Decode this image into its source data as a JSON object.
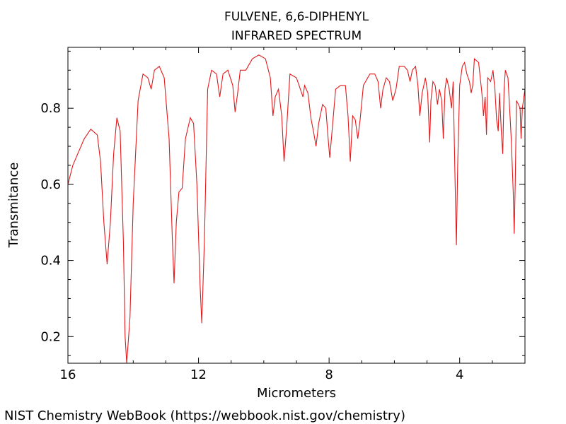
{
  "chart_data": {
    "type": "line",
    "title": "FULVENE, 6,6-DIPHENYL",
    "subtitle": "INFRARED SPECTRUM",
    "xlabel": "Micrometers",
    "ylabel": "Transmitance",
    "xlim": [
      16,
      2
    ],
    "ylim": [
      0.13,
      0.96
    ],
    "x_ticks": [
      16,
      12,
      8,
      4
    ],
    "y_ticks": [
      0.2,
      0.4,
      0.6,
      0.8
    ],
    "grid": false,
    "line_color": "#e31a1c",
    "series": [
      {
        "points": [
          [
            16.0,
            0.6
          ],
          [
            15.85,
            0.65
          ],
          [
            15.7,
            0.68
          ],
          [
            15.5,
            0.72
          ],
          [
            15.3,
            0.745
          ],
          [
            15.1,
            0.73
          ],
          [
            15.0,
            0.66
          ],
          [
            14.9,
            0.5
          ],
          [
            14.8,
            0.39
          ],
          [
            14.7,
            0.5
          ],
          [
            14.6,
            0.68
          ],
          [
            14.5,
            0.775
          ],
          [
            14.4,
            0.74
          ],
          [
            14.3,
            0.45
          ],
          [
            14.25,
            0.2
          ],
          [
            14.2,
            0.13
          ],
          [
            14.1,
            0.25
          ],
          [
            14.0,
            0.55
          ],
          [
            13.85,
            0.82
          ],
          [
            13.7,
            0.89
          ],
          [
            13.55,
            0.88
          ],
          [
            13.45,
            0.85
          ],
          [
            13.35,
            0.9
          ],
          [
            13.2,
            0.91
          ],
          [
            13.05,
            0.88
          ],
          [
            12.9,
            0.72
          ],
          [
            12.8,
            0.45
          ],
          [
            12.75,
            0.34
          ],
          [
            12.68,
            0.5
          ],
          [
            12.6,
            0.58
          ],
          [
            12.5,
            0.59
          ],
          [
            12.4,
            0.72
          ],
          [
            12.25,
            0.775
          ],
          [
            12.15,
            0.76
          ],
          [
            12.05,
            0.6
          ],
          [
            11.95,
            0.33
          ],
          [
            11.9,
            0.235
          ],
          [
            11.82,
            0.45
          ],
          [
            11.72,
            0.85
          ],
          [
            11.6,
            0.9
          ],
          [
            11.45,
            0.89
          ],
          [
            11.35,
            0.83
          ],
          [
            11.25,
            0.89
          ],
          [
            11.1,
            0.9
          ],
          [
            10.95,
            0.86
          ],
          [
            10.88,
            0.79
          ],
          [
            10.8,
            0.84
          ],
          [
            10.72,
            0.9
          ],
          [
            10.55,
            0.9
          ],
          [
            10.35,
            0.93
          ],
          [
            10.15,
            0.94
          ],
          [
            9.95,
            0.93
          ],
          [
            9.8,
            0.88
          ],
          [
            9.72,
            0.78
          ],
          [
            9.65,
            0.83
          ],
          [
            9.55,
            0.85
          ],
          [
            9.45,
            0.78
          ],
          [
            9.38,
            0.66
          ],
          [
            9.3,
            0.75
          ],
          [
            9.2,
            0.89
          ],
          [
            9.0,
            0.88
          ],
          [
            8.88,
            0.85
          ],
          [
            8.8,
            0.83
          ],
          [
            8.75,
            0.86
          ],
          [
            8.65,
            0.84
          ],
          [
            8.55,
            0.77
          ],
          [
            8.48,
            0.74
          ],
          [
            8.4,
            0.7
          ],
          [
            8.32,
            0.76
          ],
          [
            8.2,
            0.81
          ],
          [
            8.1,
            0.8
          ],
          [
            8.03,
            0.72
          ],
          [
            7.98,
            0.67
          ],
          [
            7.9,
            0.75
          ],
          [
            7.8,
            0.85
          ],
          [
            7.65,
            0.86
          ],
          [
            7.5,
            0.86
          ],
          [
            7.42,
            0.78
          ],
          [
            7.35,
            0.66
          ],
          [
            7.28,
            0.78
          ],
          [
            7.2,
            0.77
          ],
          [
            7.12,
            0.72
          ],
          [
            7.05,
            0.77
          ],
          [
            6.95,
            0.86
          ],
          [
            6.75,
            0.89
          ],
          [
            6.6,
            0.89
          ],
          [
            6.5,
            0.87
          ],
          [
            6.42,
            0.8
          ],
          [
            6.35,
            0.85
          ],
          [
            6.25,
            0.88
          ],
          [
            6.15,
            0.87
          ],
          [
            6.05,
            0.82
          ],
          [
            5.95,
            0.85
          ],
          [
            5.85,
            0.91
          ],
          [
            5.7,
            0.91
          ],
          [
            5.6,
            0.9
          ],
          [
            5.52,
            0.87
          ],
          [
            5.45,
            0.9
          ],
          [
            5.35,
            0.91
          ],
          [
            5.28,
            0.86
          ],
          [
            5.22,
            0.78
          ],
          [
            5.15,
            0.84
          ],
          [
            5.05,
            0.88
          ],
          [
            4.98,
            0.84
          ],
          [
            4.92,
            0.71
          ],
          [
            4.88,
            0.82
          ],
          [
            4.82,
            0.87
          ],
          [
            4.75,
            0.86
          ],
          [
            4.68,
            0.81
          ],
          [
            4.62,
            0.85
          ],
          [
            4.55,
            0.82
          ],
          [
            4.5,
            0.72
          ],
          [
            4.45,
            0.85
          ],
          [
            4.4,
            0.88
          ],
          [
            4.32,
            0.85
          ],
          [
            4.25,
            0.8
          ],
          [
            4.2,
            0.87
          ],
          [
            4.14,
            0.6
          ],
          [
            4.1,
            0.44
          ],
          [
            4.06,
            0.65
          ],
          [
            4.0,
            0.86
          ],
          [
            3.92,
            0.91
          ],
          [
            3.85,
            0.92
          ],
          [
            3.78,
            0.89
          ],
          [
            3.7,
            0.87
          ],
          [
            3.65,
            0.84
          ],
          [
            3.6,
            0.86
          ],
          [
            3.55,
            0.93
          ],
          [
            3.42,
            0.92
          ],
          [
            3.32,
            0.84
          ],
          [
            3.27,
            0.78
          ],
          [
            3.22,
            0.83
          ],
          [
            3.18,
            0.73
          ],
          [
            3.14,
            0.88
          ],
          [
            3.05,
            0.87
          ],
          [
            2.98,
            0.9
          ],
          [
            2.92,
            0.85
          ],
          [
            2.87,
            0.77
          ],
          [
            2.82,
            0.74
          ],
          [
            2.78,
            0.84
          ],
          [
            2.72,
            0.73
          ],
          [
            2.68,
            0.68
          ],
          [
            2.64,
            0.85
          ],
          [
            2.6,
            0.9
          ],
          [
            2.52,
            0.88
          ],
          [
            2.47,
            0.8
          ],
          [
            2.42,
            0.72
          ],
          [
            2.36,
            0.58
          ],
          [
            2.33,
            0.47
          ],
          [
            2.3,
            0.6
          ],
          [
            2.26,
            0.82
          ],
          [
            2.2,
            0.81
          ],
          [
            2.15,
            0.8
          ],
          [
            2.12,
            0.72
          ],
          [
            2.08,
            0.8
          ],
          [
            2.0,
            0.85
          ]
        ]
      }
    ]
  },
  "footer": {
    "credit": "NIST Chemistry WebBook (https://webbook.nist.gov/chemistry)"
  }
}
